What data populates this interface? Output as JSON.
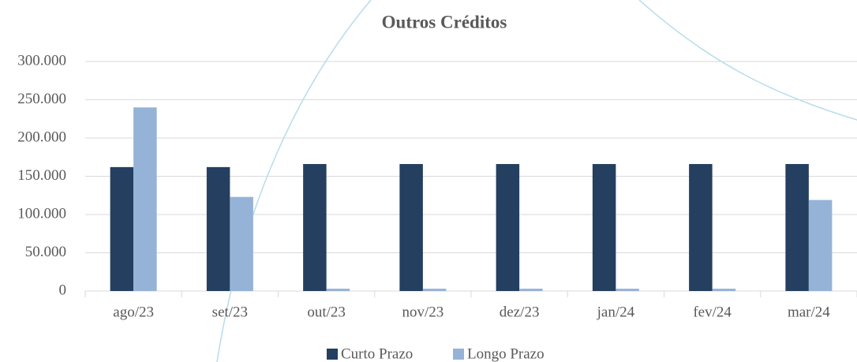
{
  "chart_data": {
    "type": "bar",
    "title": "Outros Créditos",
    "categories": [
      "ago/23",
      "set/23",
      "out/23",
      "nov/23",
      "dez/23",
      "jan/24",
      "fev/24",
      "mar/24"
    ],
    "series": [
      {
        "name": "Curto Prazo",
        "color": "#243f60",
        "values": [
          162000,
          162000,
          166000,
          166000,
          166000,
          166000,
          166000,
          166000
        ]
      },
      {
        "name": "Longo Prazo",
        "color": "#95b3d7",
        "values": [
          240000,
          123000,
          3000,
          3000,
          3000,
          3000,
          3000,
          119000
        ]
      }
    ],
    "ylim": [
      0,
      300000
    ],
    "yticks": [
      0,
      {
        "value": 50000,
        "label": "50.000"
      },
      {
        "value": 100000,
        "label": "100.000"
      },
      {
        "value": 150000,
        "label": "150.000"
      },
      {
        "value": 200000,
        "label": "200.000"
      },
      {
        "value": 250000,
        "label": "250.000"
      },
      {
        "value": 300000,
        "label": "300.000"
      }
    ],
    "grid": true,
    "legend": "bottom"
  }
}
